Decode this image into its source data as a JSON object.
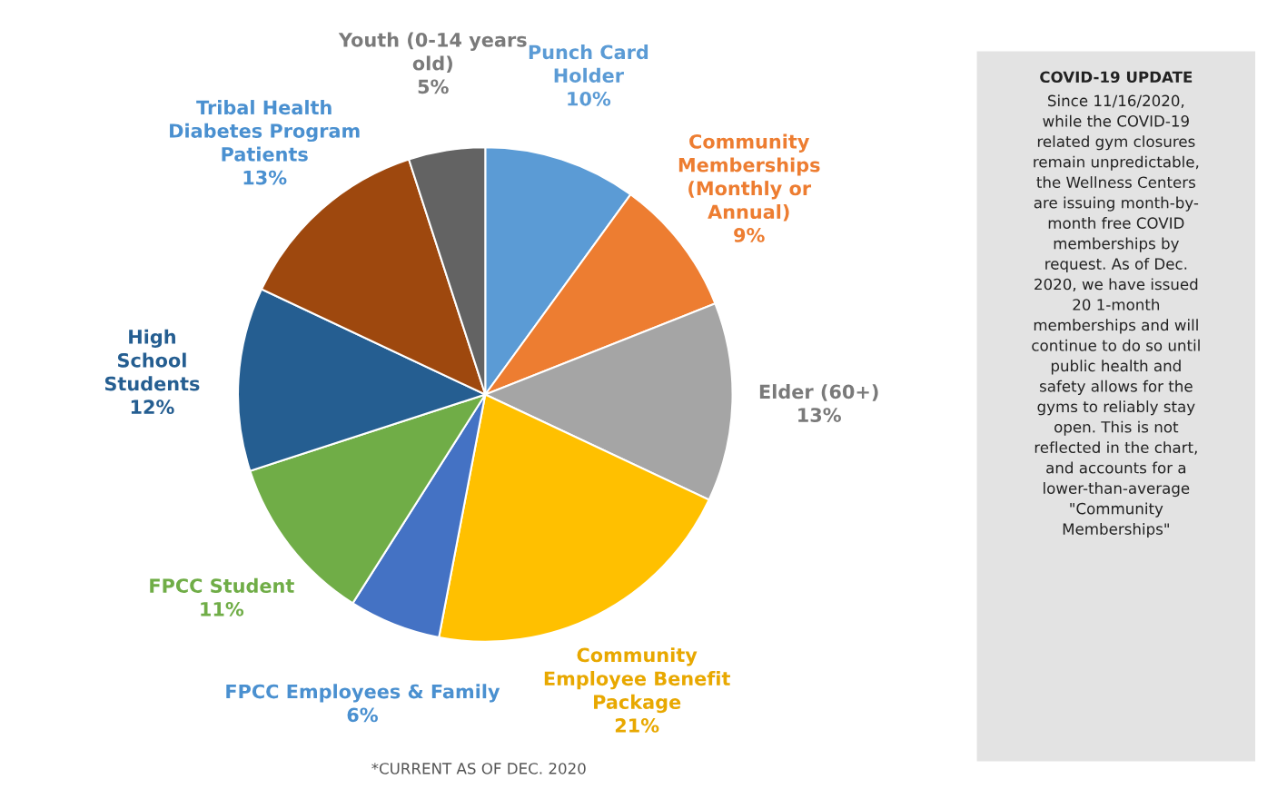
{
  "chart_data": {
    "type": "pie",
    "categories": [
      "Punch Card\nHolder",
      "Community\nMemberships\n(Monthly or\nAnnual)",
      "Elder (60+)",
      "Community\nEmployee Benefit\nPackage",
      "FPCC Employees & Family",
      "FPCC Student",
      "High\nSchool\nStudents",
      "Tribal Health\nDiabetes Program\nPatients",
      "Youth (0-14 years\nold)"
    ],
    "values": [
      10,
      9,
      13,
      21,
      6,
      11,
      12,
      13,
      5
    ],
    "value_labels": [
      "10%",
      "9%",
      "13%",
      "21%",
      "6%",
      "11%",
      "12%",
      "13%",
      "5%"
    ],
    "colors": [
      "#5b9bd5",
      "#ed7d31",
      "#a5a5a5",
      "#ffc000",
      "#4472c4",
      "#70ad47",
      "#255e91",
      "#9e480e",
      "#636363"
    ],
    "annotations": [
      "*CURRENT AS OF DEC. 2020",
      "COVID-19 UPDATE",
      "Since 11/16/2020,\nwhile the COVID-19\nrelated gym closures\nremain unpredictable,\nthe Wellness Centers\nare issuing month-by-\nmonth free COVID\nmemberships by\nrequest. As of Dec.\n2020, we have issued\n20 1-month\nmemberships and will\ncontinue to do so until\npublic health and\nsafety allows for the\ngyms to reliably stay\nopen. This is not\nreflected in the chart,\nand accounts for a\nlower-than-average\n\"Community\nMemberships\""
    ],
    "legend": false
  }
}
